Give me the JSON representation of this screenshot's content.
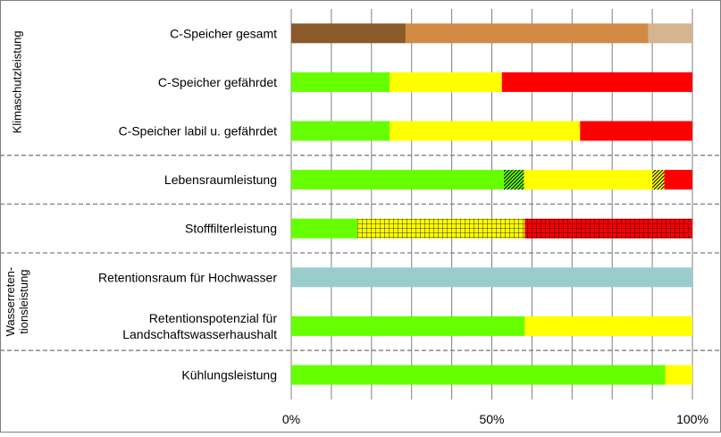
{
  "chart_data": {
    "type": "bar",
    "orientation": "horizontal",
    "stacked": true,
    "xlim": [
      0,
      100
    ],
    "x_ticks": [
      {
        "value": 0,
        "label": "0%"
      },
      {
        "value": 50,
        "label": "50%"
      },
      {
        "value": 100,
        "label": "100%"
      }
    ],
    "minor_gridlines_every": 10,
    "groups": [
      {
        "label_lines": [
          "Klimaschutzleistung"
        ],
        "rows": [
          0,
          2
        ]
      },
      {
        "label_lines": [],
        "rows": [
          3,
          3
        ]
      },
      {
        "label_lines": [],
        "rows": [
          4,
          4
        ]
      },
      {
        "label_lines": [
          "Wasserreten-",
          "tionsleistung"
        ],
        "rows": [
          5,
          6
        ]
      },
      {
        "label_lines": [],
        "rows": [
          7,
          7
        ]
      }
    ],
    "rows": [
      {
        "label_lines": [
          "C-Speicher gesamt"
        ],
        "segments": [
          {
            "value": 28.5,
            "color": "#8B5A2B",
            "pattern": "none"
          },
          {
            "value": 60.5,
            "color": "#D38A44",
            "pattern": "none"
          },
          {
            "value": 11.0,
            "color": "#D4B590",
            "pattern": "none"
          }
        ]
      },
      {
        "label_lines": [
          "C-Speicher gefährdet"
        ],
        "segments": [
          {
            "value": 24.5,
            "color": "#66FF00",
            "pattern": "none"
          },
          {
            "value": 28.0,
            "color": "#FFFF00",
            "pattern": "none"
          },
          {
            "value": 47.5,
            "color": "#FF0000",
            "pattern": "none"
          }
        ]
      },
      {
        "label_lines": [
          "C-Speicher labil u. gefährdet"
        ],
        "segments": [
          {
            "value": 24.5,
            "color": "#66FF00",
            "pattern": "none"
          },
          {
            "value": 47.5,
            "color": "#FFFF00",
            "pattern": "none"
          },
          {
            "value": 28.0,
            "color": "#FF0000",
            "pattern": "none"
          }
        ]
      },
      {
        "label_lines": [
          "Lebensraumleistung"
        ],
        "segments": [
          {
            "value": 53.0,
            "color": "#66FF00",
            "pattern": "none"
          },
          {
            "value": 5.0,
            "color": "#66FF00",
            "pattern": "diagonal"
          },
          {
            "value": 32.0,
            "color": "#FFFF00",
            "pattern": "none"
          },
          {
            "value": 3.0,
            "color": "#FFFF00",
            "pattern": "diagonal"
          },
          {
            "value": 7.0,
            "color": "#FF0000",
            "pattern": "none"
          }
        ]
      },
      {
        "label_lines": [
          "Stofffilterleistung"
        ],
        "segments": [
          {
            "value": 16.5,
            "color": "#66FF00",
            "pattern": "none"
          },
          {
            "value": 41.7,
            "color": "#FFFF00",
            "pattern": "grid"
          },
          {
            "value": 41.8,
            "color": "#FF0000",
            "pattern": "grid"
          }
        ]
      },
      {
        "label_lines": [
          "Retentionsraum für Hochwasser"
        ],
        "segments": [
          {
            "value": 100.0,
            "color": "#99CCCC",
            "pattern": "none"
          }
        ]
      },
      {
        "label_lines": [
          "Retentionspotenzial für",
          "Landschaftswasserhaushalt"
        ],
        "segments": [
          {
            "value": 58.2,
            "color": "#66FF00",
            "pattern": "none"
          },
          {
            "value": 41.8,
            "color": "#FFFF00",
            "pattern": "none"
          }
        ]
      },
      {
        "label_lines": [
          "Kühlungsleistung"
        ],
        "segments": [
          {
            "value": 93.2,
            "color": "#66FF00",
            "pattern": "none"
          },
          {
            "value": 6.8,
            "color": "#FFFF00",
            "pattern": "none"
          }
        ]
      }
    ],
    "xlabel": "",
    "ylabel": "",
    "grid": true,
    "legend": "none"
  }
}
